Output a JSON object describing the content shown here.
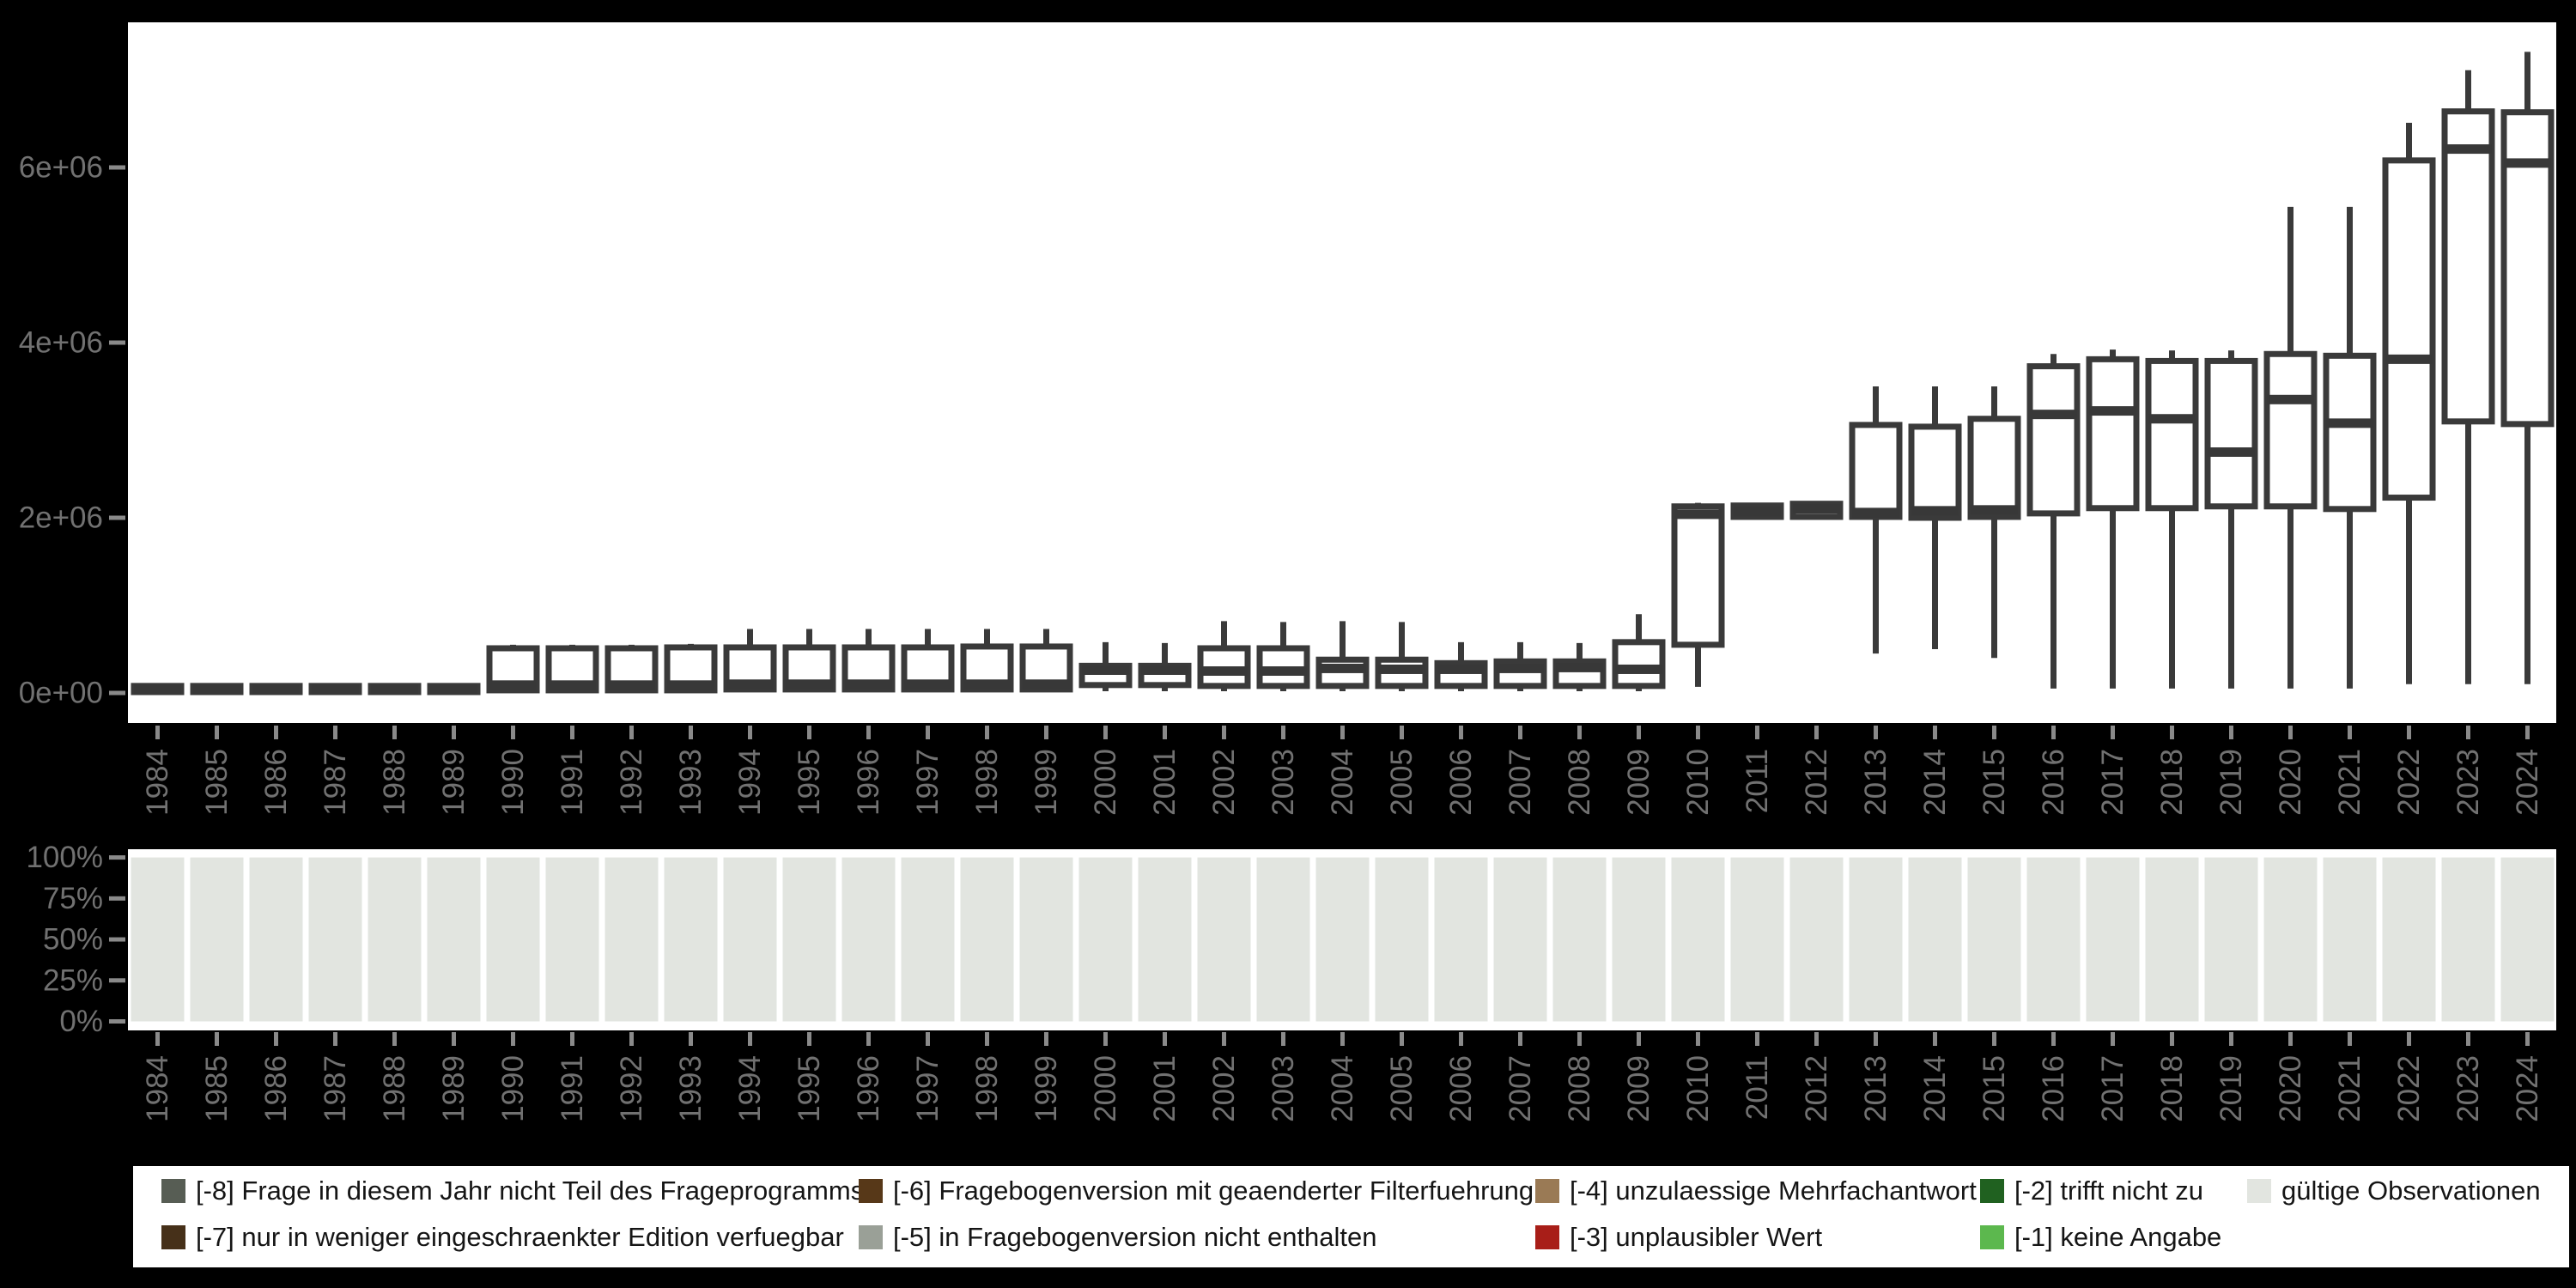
{
  "colors": {
    "background": "#000000",
    "panel_background": "#ffffff",
    "box_stroke": "#3a3a3a",
    "median_fill": "#383838",
    "axis_text": "#717171",
    "tick_mark": "#8a8a8a",
    "legend_text": "#151515",
    "valid_bar_fill": "#e2e5e0"
  },
  "years": [
    "1984",
    "1985",
    "1986",
    "1987",
    "1988",
    "1989",
    "1990",
    "1991",
    "1992",
    "1993",
    "1994",
    "1995",
    "1996",
    "1997",
    "1998",
    "1999",
    "2000",
    "2001",
    "2002",
    "2003",
    "2004",
    "2005",
    "2006",
    "2007",
    "2008",
    "2009",
    "2010",
    "2011",
    "2012",
    "2013",
    "2014",
    "2015",
    "2016",
    "2017",
    "2018",
    "2019",
    "2020",
    "2021",
    "2022",
    "2023",
    "2024"
  ],
  "chart_data": [
    {
      "type": "boxplot",
      "title": "",
      "xlabel": "",
      "ylabel": "",
      "grid": false,
      "legend_position": "none",
      "yticks": [
        {
          "label": "6e+06",
          "value": 6.0
        },
        {
          "label": "4e+06",
          "value": 4.0
        },
        {
          "label": "2e+06",
          "value": 2.0
        },
        {
          "label": "0e+00",
          "value": 0.0
        }
      ],
      "ylim_e6": [
        -0.37,
        7.67
      ],
      "values_unit": "millions",
      "categories": [
        "1984",
        "1985",
        "1986",
        "1987",
        "1988",
        "1989",
        "1990",
        "1991",
        "1992",
        "1993",
        "1994",
        "1995",
        "1996",
        "1997",
        "1998",
        "1999",
        "2000",
        "2001",
        "2002",
        "2003",
        "2004",
        "2005",
        "2006",
        "2007",
        "2008",
        "2009",
        "2010",
        "2011",
        "2012",
        "2013",
        "2014",
        "2015",
        "2016",
        "2017",
        "2018",
        "2019",
        "2020",
        "2021",
        "2022",
        "2023",
        "2024"
      ],
      "stats_low_q1_median_q3_high": [
        [
          0.0,
          0.01,
          0.04,
          0.08,
          0.09
        ],
        [
          0.0,
          0.01,
          0.04,
          0.08,
          0.09
        ],
        [
          0.0,
          0.01,
          0.04,
          0.08,
          0.09
        ],
        [
          0.0,
          0.01,
          0.04,
          0.08,
          0.09
        ],
        [
          0.0,
          0.01,
          0.04,
          0.08,
          0.09
        ],
        [
          0.0,
          0.01,
          0.04,
          0.08,
          0.09
        ],
        [
          0.01,
          0.03,
          0.09,
          0.51,
          0.55
        ],
        [
          0.01,
          0.03,
          0.09,
          0.51,
          0.55
        ],
        [
          0.01,
          0.03,
          0.09,
          0.51,
          0.55
        ],
        [
          0.01,
          0.03,
          0.09,
          0.52,
          0.56
        ],
        [
          0.01,
          0.04,
          0.1,
          0.52,
          0.73
        ],
        [
          0.01,
          0.04,
          0.1,
          0.52,
          0.73
        ],
        [
          0.01,
          0.04,
          0.1,
          0.52,
          0.73
        ],
        [
          0.01,
          0.04,
          0.1,
          0.52,
          0.73
        ],
        [
          0.01,
          0.04,
          0.1,
          0.53,
          0.73
        ],
        [
          0.01,
          0.04,
          0.1,
          0.53,
          0.73
        ],
        [
          0.02,
          0.09,
          0.26,
          0.31,
          0.58
        ],
        [
          0.02,
          0.09,
          0.26,
          0.31,
          0.57
        ],
        [
          0.02,
          0.08,
          0.25,
          0.51,
          0.82
        ],
        [
          0.02,
          0.08,
          0.25,
          0.51,
          0.81
        ],
        [
          0.02,
          0.08,
          0.28,
          0.38,
          0.82
        ],
        [
          0.02,
          0.08,
          0.27,
          0.38,
          0.81
        ],
        [
          0.02,
          0.08,
          0.27,
          0.34,
          0.58
        ],
        [
          0.02,
          0.08,
          0.28,
          0.36,
          0.58
        ],
        [
          0.02,
          0.08,
          0.29,
          0.36,
          0.57
        ],
        [
          0.02,
          0.08,
          0.27,
          0.58,
          0.9
        ],
        [
          0.07,
          0.55,
          2.04,
          2.13,
          2.17
        ],
        [
          1.98,
          2.01,
          2.07,
          2.14,
          2.16
        ],
        [
          1.98,
          2.01,
          2.1,
          2.16,
          2.18
        ],
        [
          0.45,
          2.01,
          2.06,
          3.06,
          3.5
        ],
        [
          0.5,
          2.0,
          2.08,
          3.04,
          3.5
        ],
        [
          0.4,
          2.01,
          2.09,
          3.13,
          3.5
        ],
        [
          0.05,
          2.05,
          3.18,
          3.73,
          3.87
        ],
        [
          0.05,
          2.11,
          3.22,
          3.81,
          3.92
        ],
        [
          0.05,
          2.11,
          3.13,
          3.79,
          3.91
        ],
        [
          0.05,
          2.13,
          2.75,
          3.79,
          3.91
        ],
        [
          0.05,
          2.13,
          3.35,
          3.87,
          5.55
        ],
        [
          0.05,
          2.1,
          3.08,
          3.85,
          5.55
        ],
        [
          0.1,
          2.23,
          3.81,
          6.08,
          6.51
        ],
        [
          0.1,
          3.1,
          6.21,
          6.64,
          7.11
        ],
        [
          0.1,
          3.07,
          6.05,
          6.63,
          7.32
        ]
      ]
    },
    {
      "type": "bar",
      "subtype": "stacked-percent",
      "title": "",
      "xlabel": "",
      "ylabel": "",
      "grid": false,
      "yticks": [
        {
          "label": "100%",
          "value": 100
        },
        {
          "label": "75%",
          "value": 75
        },
        {
          "label": "50%",
          "value": 50
        },
        {
          "label": "25%",
          "value": 25
        },
        {
          "label": "0%",
          "value": 0
        }
      ],
      "ylim": [
        0,
        100
      ],
      "categories": [
        "1984",
        "1985",
        "1986",
        "1987",
        "1988",
        "1989",
        "1990",
        "1991",
        "1992",
        "1993",
        "1994",
        "1995",
        "1996",
        "1997",
        "1998",
        "1999",
        "2000",
        "2001",
        "2002",
        "2003",
        "2004",
        "2005",
        "2006",
        "2007",
        "2008",
        "2009",
        "2010",
        "2011",
        "2012",
        "2013",
        "2014",
        "2015",
        "2016",
        "2017",
        "2018",
        "2019",
        "2020",
        "2021",
        "2022",
        "2023",
        "2024"
      ],
      "series": [
        {
          "name": "gültige Observationen",
          "color": "#e2e5e0",
          "values": [
            100,
            100,
            100,
            100,
            100,
            100,
            100,
            100,
            100,
            100,
            100,
            100,
            100,
            100,
            100,
            100,
            100,
            100,
            100,
            100,
            100,
            100,
            100,
            100,
            100,
            100,
            100,
            100,
            100,
            100,
            100,
            100,
            100,
            100,
            100,
            100,
            100,
            100,
            100,
            100,
            100
          ]
        }
      ]
    }
  ],
  "legend": {
    "columns": [
      {
        "items": [
          {
            "label": "[-8] Frage in diesem Jahr nicht Teil des Frageprogramms",
            "color": "#575d54"
          },
          {
            "label": "[-7] nur in weniger eingeschraenkter Edition verfuegbar",
            "color": "#463019"
          }
        ]
      },
      {
        "items": [
          {
            "label": "[-6] Fragebogenversion mit geaenderter Filterfuehrung",
            "color": "#573818"
          },
          {
            "label": "[-5] in Fragebogenversion nicht enthalten",
            "color": "#9aa097"
          }
        ]
      },
      {
        "items": [
          {
            "label": "[-4] unzulaessige Mehrfachantwort",
            "color": "#9a7a55"
          },
          {
            "label": "[-3] unplausibler Wert",
            "color": "#a81e18"
          }
        ]
      },
      {
        "items": [
          {
            "label": "[-2] trifft nicht zu",
            "color": "#206120"
          },
          {
            "label": "[-1] keine Angabe",
            "color": "#5cb84e"
          }
        ]
      },
      {
        "items": [
          {
            "label": "gültige Observationen",
            "color": "#e2e5e0"
          }
        ]
      }
    ]
  }
}
